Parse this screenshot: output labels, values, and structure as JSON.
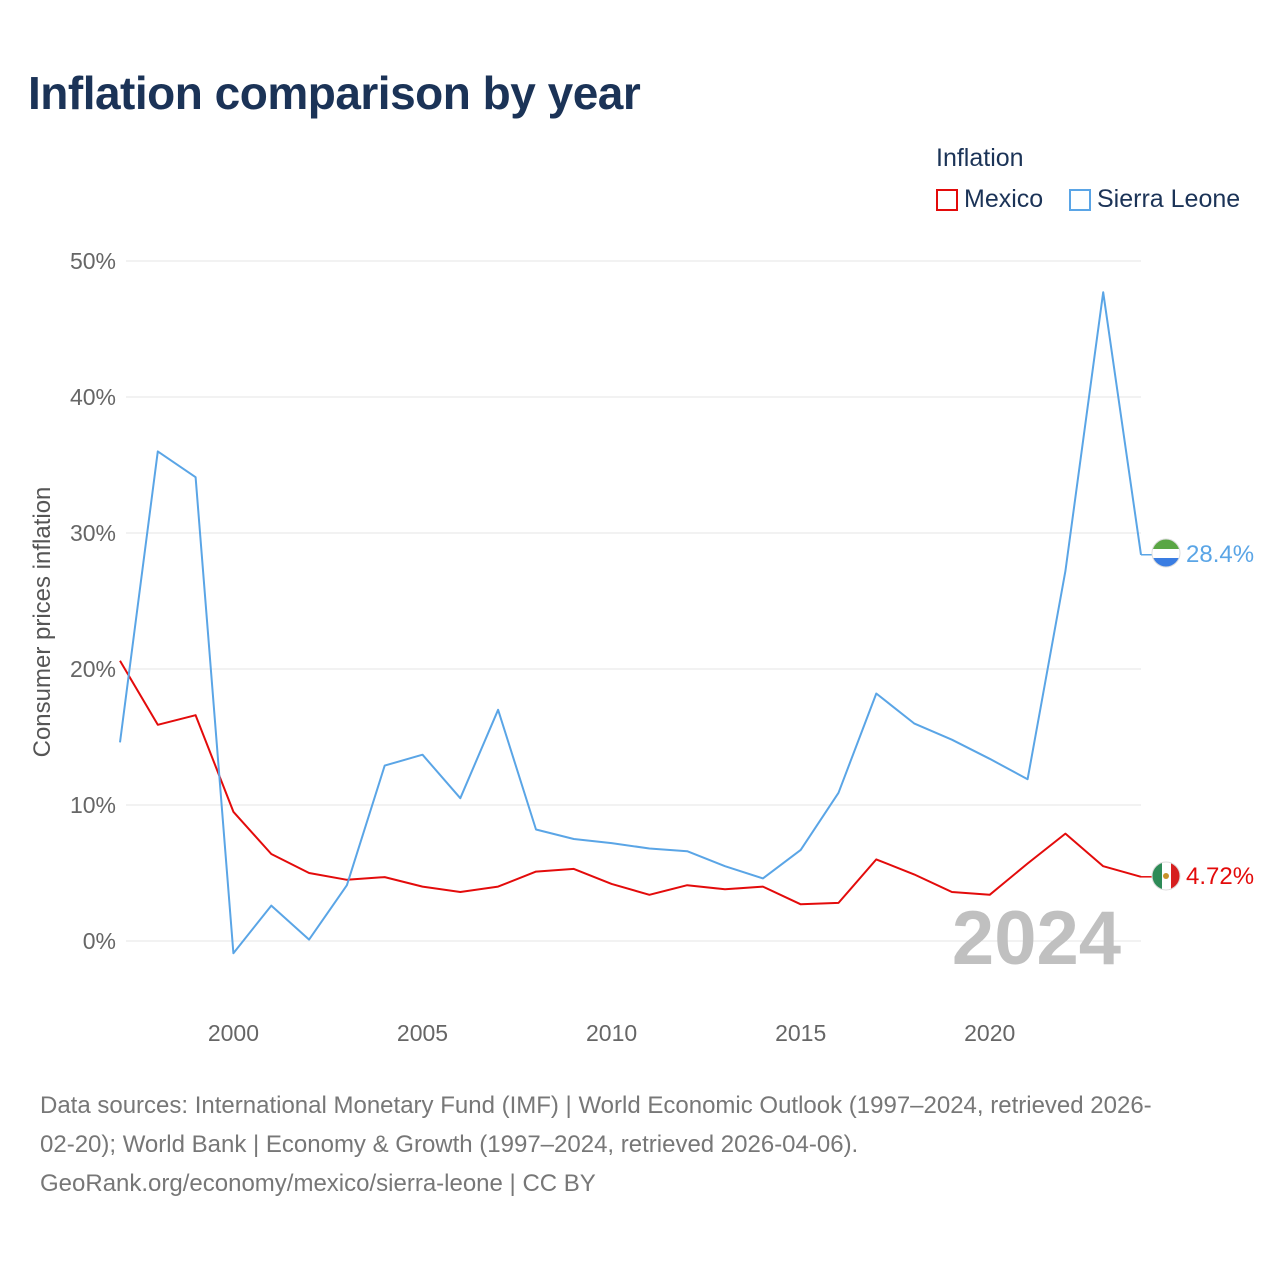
{
  "title": "Inflation comparison by year",
  "legend": {
    "title": "Inflation",
    "items": [
      {
        "label": "Mexico",
        "color": "#e30b0b"
      },
      {
        "label": "Sierra Leone",
        "color": "#5aa5e6"
      }
    ]
  },
  "chart_data": {
    "type": "line",
    "title": "Inflation comparison by year",
    "xlabel": "",
    "ylabel": "Consumer prices inflation",
    "x": [
      1997,
      1998,
      1999,
      2000,
      2001,
      2002,
      2003,
      2004,
      2005,
      2006,
      2007,
      2008,
      2009,
      2010,
      2011,
      2012,
      2013,
      2014,
      2015,
      2016,
      2017,
      2018,
      2019,
      2020,
      2021,
      2022,
      2023,
      2024
    ],
    "xlim": [
      1997,
      2024
    ],
    "ylim": [
      -5,
      52
    ],
    "yticks": [
      0,
      10,
      20,
      30,
      40,
      50
    ],
    "ytick_labels": [
      "0%",
      "10%",
      "20%",
      "30%",
      "40%",
      "50%"
    ],
    "xticks": [
      2000,
      2005,
      2010,
      2015,
      2020
    ],
    "xtick_labels": [
      "2000",
      "2005",
      "2010",
      "2015",
      "2020"
    ],
    "grid": true,
    "series": [
      {
        "name": "Mexico",
        "color": "#e30b0b",
        "values": [
          20.6,
          15.9,
          16.6,
          9.5,
          6.4,
          5.0,
          4.5,
          4.7,
          4.0,
          3.6,
          4.0,
          5.1,
          5.3,
          4.2,
          3.4,
          4.1,
          3.8,
          4.0,
          2.7,
          2.8,
          6.0,
          4.9,
          3.6,
          3.4,
          5.7,
          7.9,
          5.5,
          4.72
        ],
        "end_label": "4.72%",
        "flag": "mexico-flag"
      },
      {
        "name": "Sierra Leone",
        "color": "#5aa5e6",
        "values": [
          14.6,
          36.0,
          34.1,
          -0.9,
          2.6,
          0.1,
          4.1,
          12.9,
          13.7,
          10.5,
          17.0,
          8.2,
          7.5,
          7.2,
          6.8,
          6.6,
          5.5,
          4.6,
          6.7,
          10.9,
          18.2,
          16.0,
          14.8,
          13.4,
          11.9,
          27.2,
          47.7,
          28.4
        ],
        "end_label": "28.4%",
        "flag": "sierra-leone-flag"
      }
    ],
    "year_label": "2024"
  },
  "source": {
    "line1": "Data sources: International Monetary Fund (IMF) | World Economic Outlook (1997–2024, retrieved 2026-",
    "line2": "02-20); World Bank | Economy & Growth (1997–2024, retrieved 2026-04-06).",
    "line3": "GeoRank.org/economy/mexico/sierra-leone | CC BY"
  }
}
